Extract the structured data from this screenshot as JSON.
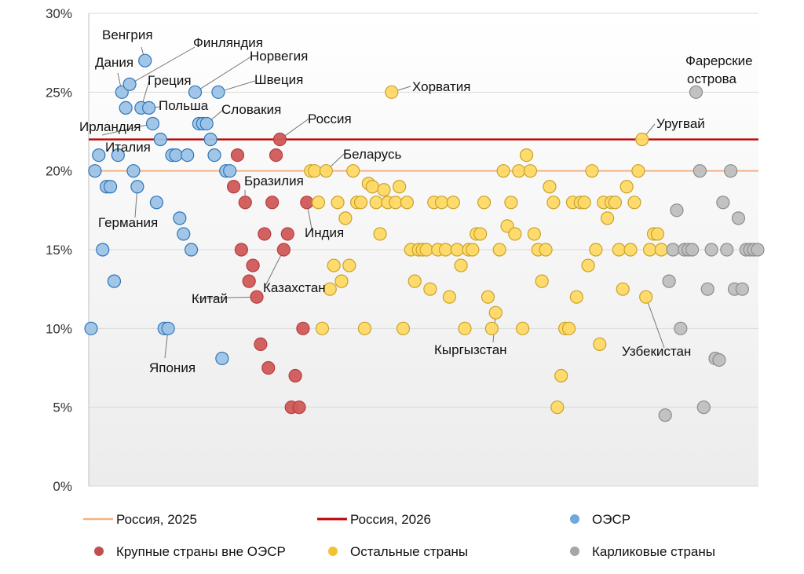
{
  "chart_data": {
    "type": "scatter",
    "title": "",
    "xlabel": "",
    "ylabel": "",
    "ylim": [
      0,
      30
    ],
    "y_ticks": [
      "0%",
      "5%",
      "10%",
      "15%",
      "20%",
      "25%",
      "30%"
    ],
    "y_tick_values": [
      0,
      5,
      10,
      15,
      20,
      25,
      30
    ],
    "x_axis": "index",
    "xlim": [
      0,
      170
    ],
    "reference_lines": [
      {
        "name": "Россия, 2025",
        "value": 20,
        "color": "#f4b183"
      },
      {
        "name": "Россия, 2026",
        "value": 22,
        "color": "#c00000"
      }
    ],
    "series": [
      {
        "name": "ОЭСР",
        "color": "#9dc3e6",
        "stroke": "#2e75b6",
        "points": [
          {
            "x": 0,
            "y": 10
          },
          {
            "x": 1,
            "y": 20
          },
          {
            "x": 2,
            "y": 21
          },
          {
            "x": 3,
            "y": 15
          },
          {
            "x": 4,
            "y": 19
          },
          {
            "x": 5,
            "y": 19
          },
          {
            "x": 6,
            "y": 13
          },
          {
            "x": 7,
            "y": 21
          },
          {
            "x": 8,
            "y": 25
          },
          {
            "x": 9,
            "y": 24
          },
          {
            "x": 10,
            "y": 25.5
          },
          {
            "x": 11,
            "y": 20
          },
          {
            "x": 12,
            "y": 19
          },
          {
            "x": 13,
            "y": 24
          },
          {
            "x": 14,
            "y": 27
          },
          {
            "x": 15,
            "y": 24
          },
          {
            "x": 16,
            "y": 23
          },
          {
            "x": 17,
            "y": 18
          },
          {
            "x": 18,
            "y": 22
          },
          {
            "x": 19,
            "y": 10
          },
          {
            "x": 20,
            "y": 10
          },
          {
            "x": 21,
            "y": 21
          },
          {
            "x": 22,
            "y": 21
          },
          {
            "x": 23,
            "y": 17
          },
          {
            "x": 24,
            "y": 16
          },
          {
            "x": 25,
            "y": 21
          },
          {
            "x": 26,
            "y": 15
          },
          {
            "x": 27,
            "y": 25
          },
          {
            "x": 28,
            "y": 23
          },
          {
            "x": 29,
            "y": 23
          },
          {
            "x": 30,
            "y": 23
          },
          {
            "x": 31,
            "y": 22
          },
          {
            "x": 32,
            "y": 21
          },
          {
            "x": 33,
            "y": 25
          },
          {
            "x": 34,
            "y": 8.1
          },
          {
            "x": 35,
            "y": 20
          },
          {
            "x": 36,
            "y": 20
          }
        ]
      },
      {
        "name": "Крупные страны вне ОЭСР",
        "color": "#d05a5a",
        "stroke": "#b83c3c",
        "points": [
          {
            "x": 37,
            "y": 19
          },
          {
            "x": 38,
            "y": 21
          },
          {
            "x": 39,
            "y": 15
          },
          {
            "x": 40,
            "y": 18
          },
          {
            "x": 41,
            "y": 13
          },
          {
            "x": 42,
            "y": 14
          },
          {
            "x": 43,
            "y": 12
          },
          {
            "x": 44,
            "y": 9
          },
          {
            "x": 45,
            "y": 16
          },
          {
            "x": 46,
            "y": 7.5
          },
          {
            "x": 47,
            "y": 18
          },
          {
            "x": 48,
            "y": 21
          },
          {
            "x": 49,
            "y": 22
          },
          {
            "x": 50,
            "y": 15
          },
          {
            "x": 51,
            "y": 16
          },
          {
            "x": 52,
            "y": 5
          },
          {
            "x": 53,
            "y": 7
          },
          {
            "x": 54,
            "y": 5
          },
          {
            "x": 55,
            "y": 10
          },
          {
            "x": 56,
            "y": 18
          }
        ]
      },
      {
        "name": "Остальные страны",
        "color": "#ffd966",
        "stroke": "#c9a227",
        "points": [
          {
            "x": 57,
            "y": 20
          },
          {
            "x": 58,
            "y": 20
          },
          {
            "x": 59,
            "y": 18
          },
          {
            "x": 60,
            "y": 10
          },
          {
            "x": 61,
            "y": 20
          },
          {
            "x": 62,
            "y": 12.5
          },
          {
            "x": 63,
            "y": 14
          },
          {
            "x": 64,
            "y": 18
          },
          {
            "x": 65,
            "y": 13
          },
          {
            "x": 66,
            "y": 17
          },
          {
            "x": 67,
            "y": 14
          },
          {
            "x": 68,
            "y": 20
          },
          {
            "x": 69,
            "y": 18
          },
          {
            "x": 70,
            "y": 18
          },
          {
            "x": 71,
            "y": 10
          },
          {
            "x": 72,
            "y": 19.2
          },
          {
            "x": 73,
            "y": 19
          },
          {
            "x": 74,
            "y": 18
          },
          {
            "x": 75,
            "y": 16
          },
          {
            "x": 76,
            "y": 18.8
          },
          {
            "x": 77,
            "y": 18
          },
          {
            "x": 78,
            "y": 25
          },
          {
            "x": 79,
            "y": 18
          },
          {
            "x": 80,
            "y": 19
          },
          {
            "x": 81,
            "y": 10
          },
          {
            "x": 82,
            "y": 18
          },
          {
            "x": 83,
            "y": 15
          },
          {
            "x": 84,
            "y": 13
          },
          {
            "x": 85,
            "y": 15
          },
          {
            "x": 86,
            "y": 15
          },
          {
            "x": 87,
            "y": 15
          },
          {
            "x": 88,
            "y": 12.5
          },
          {
            "x": 89,
            "y": 18
          },
          {
            "x": 90,
            "y": 15
          },
          {
            "x": 91,
            "y": 18
          },
          {
            "x": 92,
            "y": 15
          },
          {
            "x": 93,
            "y": 12
          },
          {
            "x": 94,
            "y": 18
          },
          {
            "x": 95,
            "y": 15
          },
          {
            "x": 96,
            "y": 14
          },
          {
            "x": 97,
            "y": 10
          },
          {
            "x": 98,
            "y": 15
          },
          {
            "x": 99,
            "y": 15
          },
          {
            "x": 100,
            "y": 16
          },
          {
            "x": 101,
            "y": 16
          },
          {
            "x": 102,
            "y": 18
          },
          {
            "x": 103,
            "y": 12
          },
          {
            "x": 104,
            "y": 10
          },
          {
            "x": 105,
            "y": 11
          },
          {
            "x": 106,
            "y": 15
          },
          {
            "x": 107,
            "y": 20
          },
          {
            "x": 108,
            "y": 16.5
          },
          {
            "x": 109,
            "y": 18
          },
          {
            "x": 110,
            "y": 16
          },
          {
            "x": 111,
            "y": 20
          },
          {
            "x": 112,
            "y": 10
          },
          {
            "x": 113,
            "y": 21
          },
          {
            "x": 114,
            "y": 20
          },
          {
            "x": 115,
            "y": 16
          },
          {
            "x": 116,
            "y": 15
          },
          {
            "x": 117,
            "y": 13
          },
          {
            "x": 118,
            "y": 15
          },
          {
            "x": 119,
            "y": 19
          },
          {
            "x": 120,
            "y": 18
          },
          {
            "x": 121,
            "y": 5
          },
          {
            "x": 122,
            "y": 7
          },
          {
            "x": 123,
            "y": 10
          },
          {
            "x": 124,
            "y": 10
          },
          {
            "x": 125,
            "y": 18
          },
          {
            "x": 126,
            "y": 12
          },
          {
            "x": 127,
            "y": 18
          },
          {
            "x": 128,
            "y": 18
          },
          {
            "x": 129,
            "y": 14
          },
          {
            "x": 130,
            "y": 20
          },
          {
            "x": 131,
            "y": 15
          },
          {
            "x": 132,
            "y": 9
          },
          {
            "x": 133,
            "y": 18
          },
          {
            "x": 134,
            "y": 17
          },
          {
            "x": 135,
            "y": 18
          },
          {
            "x": 136,
            "y": 18
          },
          {
            "x": 137,
            "y": 15
          },
          {
            "x": 138,
            "y": 12.5
          },
          {
            "x": 139,
            "y": 19
          },
          {
            "x": 140,
            "y": 15
          },
          {
            "x": 141,
            "y": 18
          },
          {
            "x": 142,
            "y": 20
          },
          {
            "x": 143,
            "y": 22
          },
          {
            "x": 144,
            "y": 12
          },
          {
            "x": 145,
            "y": 15
          },
          {
            "x": 146,
            "y": 16
          },
          {
            "x": 147,
            "y": 16
          },
          {
            "x": 148,
            "y": 15
          }
        ]
      },
      {
        "name": "Карликовые страны",
        "color": "#bfbfbf",
        "stroke": "#8c8c8c",
        "points": [
          {
            "x": 149,
            "y": 4.5
          },
          {
            "x": 150,
            "y": 13
          },
          {
            "x": 151,
            "y": 15
          },
          {
            "x": 152,
            "y": 17.5
          },
          {
            "x": 153,
            "y": 10
          },
          {
            "x": 154,
            "y": 15
          },
          {
            "x": 155,
            "y": 15
          },
          {
            "x": 156,
            "y": 15
          },
          {
            "x": 157,
            "y": 25
          },
          {
            "x": 158,
            "y": 20
          },
          {
            "x": 159,
            "y": 5
          },
          {
            "x": 160,
            "y": 12.5
          },
          {
            "x": 161,
            "y": 15
          },
          {
            "x": 162,
            "y": 8.1
          },
          {
            "x": 163,
            "y": 8
          },
          {
            "x": 164,
            "y": 18
          },
          {
            "x": 165,
            "y": 15
          },
          {
            "x": 166,
            "y": 20
          },
          {
            "x": 167,
            "y": 12.5
          },
          {
            "x": 168,
            "y": 17
          },
          {
            "x": 169,
            "y": 12.5
          },
          {
            "x": 170,
            "y": 15
          },
          {
            "x": 171,
            "y": 15
          },
          {
            "x": 172,
            "y": 15
          },
          {
            "x": 173,
            "y": 15
          }
        ]
      }
    ],
    "annotations": [
      {
        "text": "Венгрия",
        "x": 14,
        "y": 27
      },
      {
        "text": "Финляндия",
        "x": 10,
        "y": 25.5
      },
      {
        "text": "Дания",
        "x": 8,
        "y": 25
      },
      {
        "text": "Норвегия",
        "x": 27,
        "y": 25
      },
      {
        "text": "Греция",
        "x": 13,
        "y": 24
      },
      {
        "text": "Швеция",
        "x": 33,
        "y": 25
      },
      {
        "text": "Польша",
        "x": 15,
        "y": 24
      },
      {
        "text": "Словакия",
        "x": 30,
        "y": 23
      },
      {
        "text": "Ирландия",
        "x": 16,
        "y": 23
      },
      {
        "text": "Италия",
        "x": 7,
        "y": 21
      },
      {
        "text": "Германия",
        "x": 12,
        "y": 19
      },
      {
        "text": "Япония",
        "x": 20,
        "y": 10
      },
      {
        "text": "Россия",
        "x": 49,
        "y": 22
      },
      {
        "text": "Бразилия",
        "x": 40,
        "y": 18
      },
      {
        "text": "Индия",
        "x": 56,
        "y": 18
      },
      {
        "text": "Казахстан",
        "x": 50,
        "y": 15
      },
      {
        "text": "Китай",
        "x": 43,
        "y": 12
      },
      {
        "text": "Хорватия",
        "x": 78,
        "y": 25
      },
      {
        "text": "Беларусь",
        "x": 61,
        "y": 20
      },
      {
        "text": "Кыргызстан",
        "x": 105,
        "y": 11
      },
      {
        "text": "Уругвай",
        "x": 143,
        "y": 22
      },
      {
        "text": "Узбекистан",
        "x": 144,
        "y": 12
      },
      {
        "text": "Фарерские острова",
        "x": 157,
        "y": 25
      }
    ],
    "legend": [
      {
        "label": "Россия, 2025",
        "kind": "line",
        "color": "#f4b183"
      },
      {
        "label": "Россия, 2026",
        "kind": "line",
        "color": "#c00000"
      },
      {
        "label": "ОЭСР",
        "kind": "dot",
        "color": "#6fa8dc"
      },
      {
        "label": "Крупные страны вне ОЭСР",
        "kind": "dot",
        "color": "#c0504d"
      },
      {
        "label": "Остальные страны",
        "kind": "dot",
        "color": "#f1c232"
      },
      {
        "label": "Карликовые страны",
        "kind": "dot",
        "color": "#a6a6a6"
      }
    ],
    "legend_position": "bottom"
  }
}
